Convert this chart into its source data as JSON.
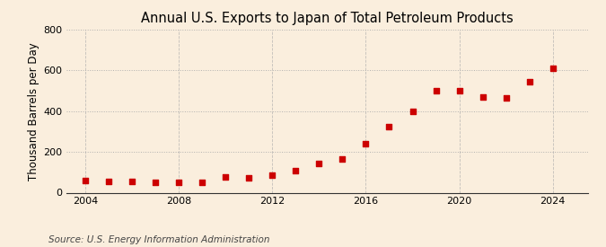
{
  "title": "Annual U.S. Exports to Japan of Total Petroleum Products",
  "ylabel": "Thousand Barrels per Day",
  "source": "Source: U.S. Energy Information Administration",
  "background_color": "#faeedd",
  "plot_bg_color": "#faeedd",
  "marker_color": "#cc0000",
  "years": [
    2004,
    2005,
    2006,
    2007,
    2008,
    2009,
    2010,
    2011,
    2012,
    2013,
    2014,
    2015,
    2016,
    2017,
    2018,
    2019,
    2020,
    2021,
    2022,
    2023,
    2024
  ],
  "values": [
    58,
    55,
    53,
    52,
    52,
    50,
    75,
    72,
    85,
    110,
    145,
    165,
    240,
    325,
    400,
    500,
    500,
    470,
    465,
    545,
    610
  ],
  "ylim": [
    0,
    800
  ],
  "yticks": [
    0,
    200,
    400,
    600,
    800
  ],
  "xlim": [
    2003.2,
    2025.5
  ],
  "xticks": [
    2004,
    2008,
    2012,
    2016,
    2020,
    2024
  ],
  "hgrid_color": "#aaaaaa",
  "vgrid_color": "#aaaaaa",
  "title_fontsize": 10.5,
  "label_fontsize": 8.5,
  "tick_fontsize": 8,
  "source_fontsize": 7.5
}
